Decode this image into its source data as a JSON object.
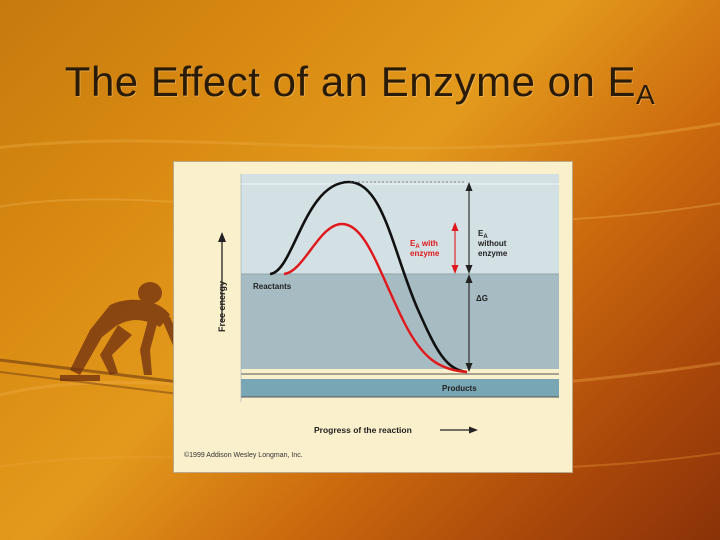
{
  "slide": {
    "title_main": "The Effect of an Enzyme on E",
    "title_sub": "A"
  },
  "figure": {
    "ylabel": "Free energy",
    "xlabel": "Progress of the reaction",
    "reactants_label": "Reactants",
    "products_label": "Products",
    "ea_with_line1": "E",
    "ea_with_sub": "A",
    "ea_with_line1b": " with",
    "ea_with_line2": "enzyme",
    "ea_without_line1": "E",
    "ea_without_sub": "A",
    "ea_without_line2": "without",
    "ea_without_line3": "enzyme",
    "delta_g_label": "ΔG",
    "copyright": "©1999 Addison Wesley Longman, Inc.",
    "colors": {
      "without_enzyme_curve": "#111111",
      "with_enzyme_curve": "#e0181c",
      "top_band": "#d3e0e4",
      "middle_band": "#a6bcc2",
      "products_band": "#78a6b4",
      "left_strip": "#fbf0cc",
      "arrow": "#222222"
    }
  }
}
